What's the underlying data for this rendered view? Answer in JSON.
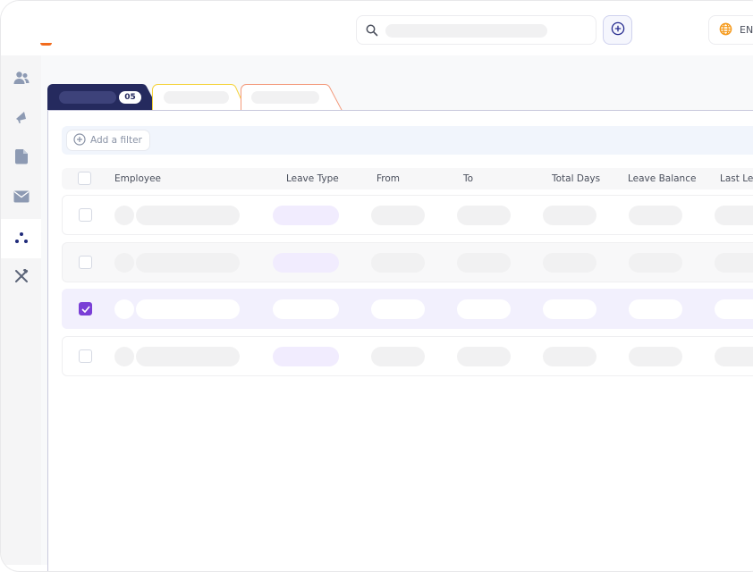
{
  "header": {
    "language": "EN",
    "search_icon": "search-icon",
    "add_icon": "plus-circle-icon",
    "globe_icon": "globe-icon"
  },
  "sidebar": {
    "items": [
      {
        "icon": "users-icon",
        "active": false
      },
      {
        "icon": "megaphone-icon",
        "active": false
      },
      {
        "icon": "document-icon",
        "active": false
      },
      {
        "icon": "mail-icon",
        "active": false
      },
      {
        "icon": "dots-icon",
        "active": true
      },
      {
        "icon": "tools-icon",
        "active": false
      }
    ]
  },
  "tabs": [
    {
      "count": "05",
      "active": true,
      "color": "#252a5e"
    },
    {
      "color": "#f5d33c"
    },
    {
      "color": "#f39a7c"
    }
  ],
  "filter": {
    "label": "Add a filter"
  },
  "table": {
    "columns": [
      "Employee",
      "Leave Type",
      "From",
      "To",
      "Total Days",
      "Leave Balance",
      "Last Leave"
    ],
    "rows": [
      {
        "checked": false
      },
      {
        "checked": false
      },
      {
        "checked": true
      },
      {
        "checked": false
      }
    ]
  },
  "colors": {
    "accent": "#7a3fd6",
    "brand": "#f26b1d",
    "navy": "#252a5e"
  }
}
